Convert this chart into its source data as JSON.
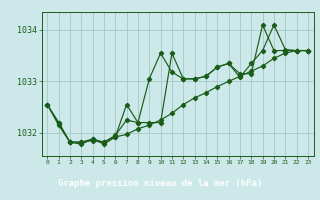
{
  "title": "Graphe pression niveau de la mer (hPa)",
  "background_color": "#cce8e8",
  "grid_color": "#aacccc",
  "line_color": "#1a5c1a",
  "label_bg": "#2d6e2d",
  "label_fg": "#ffffff",
  "ylim": [
    1031.55,
    1034.35
  ],
  "xlim": [
    -0.5,
    23.5
  ],
  "yticks": [
    1032,
    1033,
    1034
  ],
  "ytick_labels": [
    "1032",
    "1033",
    "1034"
  ],
  "xtick_labels": [
    "0",
    "1",
    "2",
    "3",
    "4",
    "5",
    "6",
    "7",
    "8",
    "9",
    "10",
    "11",
    "12",
    "13",
    "14",
    "15",
    "16",
    "17",
    "18",
    "19",
    "20",
    "21",
    "22",
    "23"
  ],
  "series1_x": [
    0,
    1,
    2,
    3,
    4,
    5,
    6,
    7,
    8,
    9,
    10,
    11,
    12,
    13,
    14,
    15,
    16,
    17,
    18,
    19,
    20,
    21,
    22,
    23
  ],
  "series1_y": [
    1032.55,
    1032.2,
    1031.82,
    1031.82,
    1031.88,
    1031.82,
    1031.95,
    1032.25,
    1032.2,
    1033.05,
    1033.55,
    1033.18,
    1033.05,
    1033.05,
    1033.1,
    1033.28,
    1033.35,
    1033.15,
    1033.15,
    1034.1,
    1033.6,
    1033.6,
    1033.6,
    1033.6
  ],
  "series2_x": [
    0,
    1,
    2,
    3,
    4,
    5,
    6,
    7,
    8,
    9,
    10,
    11,
    12,
    13,
    14,
    15,
    16,
    17,
    18,
    19,
    20,
    21,
    22,
    23
  ],
  "series2_y": [
    1032.55,
    1032.2,
    1031.82,
    1031.78,
    1031.88,
    1031.78,
    1031.92,
    1032.55,
    1032.2,
    1032.2,
    1032.2,
    1033.55,
    1033.05,
    1033.05,
    1033.1,
    1033.28,
    1033.35,
    1033.08,
    1033.35,
    1033.6,
    1034.1,
    1033.62,
    1033.6,
    1033.6
  ],
  "series3_x": [
    0,
    1,
    2,
    3,
    4,
    5,
    6,
    7,
    8,
    9,
    10,
    11,
    12,
    13,
    14,
    15,
    16,
    17,
    18,
    19,
    20,
    21,
    22,
    23
  ],
  "series3_y": [
    1032.55,
    1032.15,
    1031.82,
    1031.82,
    1031.85,
    1031.82,
    1031.92,
    1031.97,
    1032.08,
    1032.15,
    1032.25,
    1032.38,
    1032.55,
    1032.68,
    1032.78,
    1032.9,
    1033.0,
    1033.1,
    1033.2,
    1033.3,
    1033.45,
    1033.55,
    1033.6,
    1033.6
  ]
}
